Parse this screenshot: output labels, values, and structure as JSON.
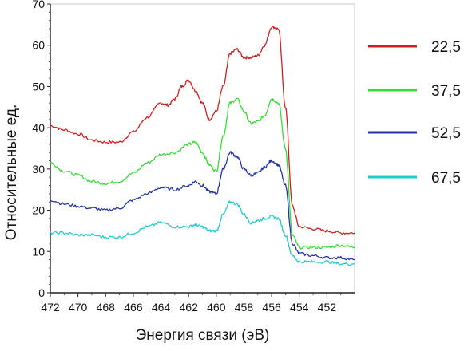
{
  "chart_data": {
    "type": "line",
    "xlabel": "Энергия связи (эВ)",
    "ylabel": "Относительные ед.",
    "xlim": [
      472,
      450
    ],
    "ylim": [
      0,
      70
    ],
    "x_reversed": true,
    "xticks": [
      472,
      470,
      468,
      466,
      464,
      462,
      460,
      458,
      456,
      454,
      452
    ],
    "yticks": [
      0,
      10,
      20,
      30,
      40,
      50,
      60,
      70
    ],
    "grid": false,
    "legend_position": "right",
    "series": [
      {
        "name": "22,5",
        "color": "#cc2020",
        "x": [
          472,
          471,
          470,
          469,
          468,
          467,
          466,
          465,
          464,
          463.5,
          463,
          462.5,
          462,
          461.5,
          461,
          460.5,
          460,
          459.5,
          459,
          458.5,
          458,
          457.5,
          457,
          456.5,
          456,
          455.5,
          455,
          454.5,
          454,
          453,
          452,
          451,
          450
        ],
        "values": [
          40.5,
          39.5,
          38.5,
          37,
          36.5,
          36.5,
          39,
          42.5,
          46,
          45.5,
          47,
          50,
          51.5,
          49,
          46,
          42,
          44,
          50,
          58,
          59,
          57,
          57,
          57.5,
          60,
          64.5,
          64,
          45,
          21,
          16,
          15.5,
          15,
          14.5,
          14.5
        ]
      },
      {
        "name": "37,5",
        "color": "#33dd33",
        "x": [
          472,
          471,
          470,
          469,
          468,
          467,
          466,
          465,
          464,
          463,
          462,
          461.5,
          461,
          460.5,
          460,
          459.5,
          459,
          458.5,
          458,
          457.5,
          457,
          456.5,
          456,
          455.5,
          455,
          454.5,
          454,
          453,
          452,
          451,
          450
        ],
        "values": [
          31.5,
          29.5,
          28.5,
          27,
          26.5,
          27,
          29,
          31.5,
          33.5,
          34,
          36,
          36.5,
          34,
          31,
          29.5,
          38,
          46,
          47,
          44,
          41,
          41.5,
          43,
          47,
          46,
          35,
          14,
          11,
          11,
          11,
          11.5,
          11
        ]
      },
      {
        "name": "52,5",
        "color": "#2233aa",
        "x": [
          472,
          471,
          470,
          469,
          468,
          467,
          466,
          465,
          464,
          463,
          462,
          461.5,
          461,
          460.5,
          460,
          459.5,
          459,
          458.5,
          458,
          457.5,
          457,
          456.5,
          456,
          455.5,
          455,
          454.5,
          454,
          453,
          452,
          451,
          450
        ],
        "values": [
          22.5,
          21.5,
          21,
          20.5,
          20,
          20.5,
          22.5,
          24,
          25.5,
          25,
          26,
          27,
          26,
          24.5,
          24,
          30,
          34,
          33,
          30,
          28.5,
          29,
          30.5,
          32,
          31,
          26,
          12,
          9.5,
          9,
          8.5,
          8.5,
          8
        ]
      },
      {
        "name": "67,5",
        "color": "#22cccc",
        "x": [
          472,
          471,
          470,
          469,
          468,
          467,
          466,
          465,
          464,
          463,
          462,
          461.5,
          461,
          460.5,
          460,
          459.5,
          459,
          458.5,
          458,
          457.5,
          457,
          456.5,
          456,
          455.5,
          455,
          454.5,
          454,
          453,
          452,
          451,
          450
        ],
        "values": [
          14.5,
          14.5,
          14,
          14,
          13.5,
          13.5,
          14.5,
          16,
          17,
          16,
          16,
          16.5,
          16,
          15,
          15,
          19,
          22,
          21.5,
          19,
          17,
          17.5,
          18,
          18.5,
          18,
          14,
          9,
          7.5,
          7.5,
          7.5,
          7,
          7
        ]
      }
    ]
  }
}
